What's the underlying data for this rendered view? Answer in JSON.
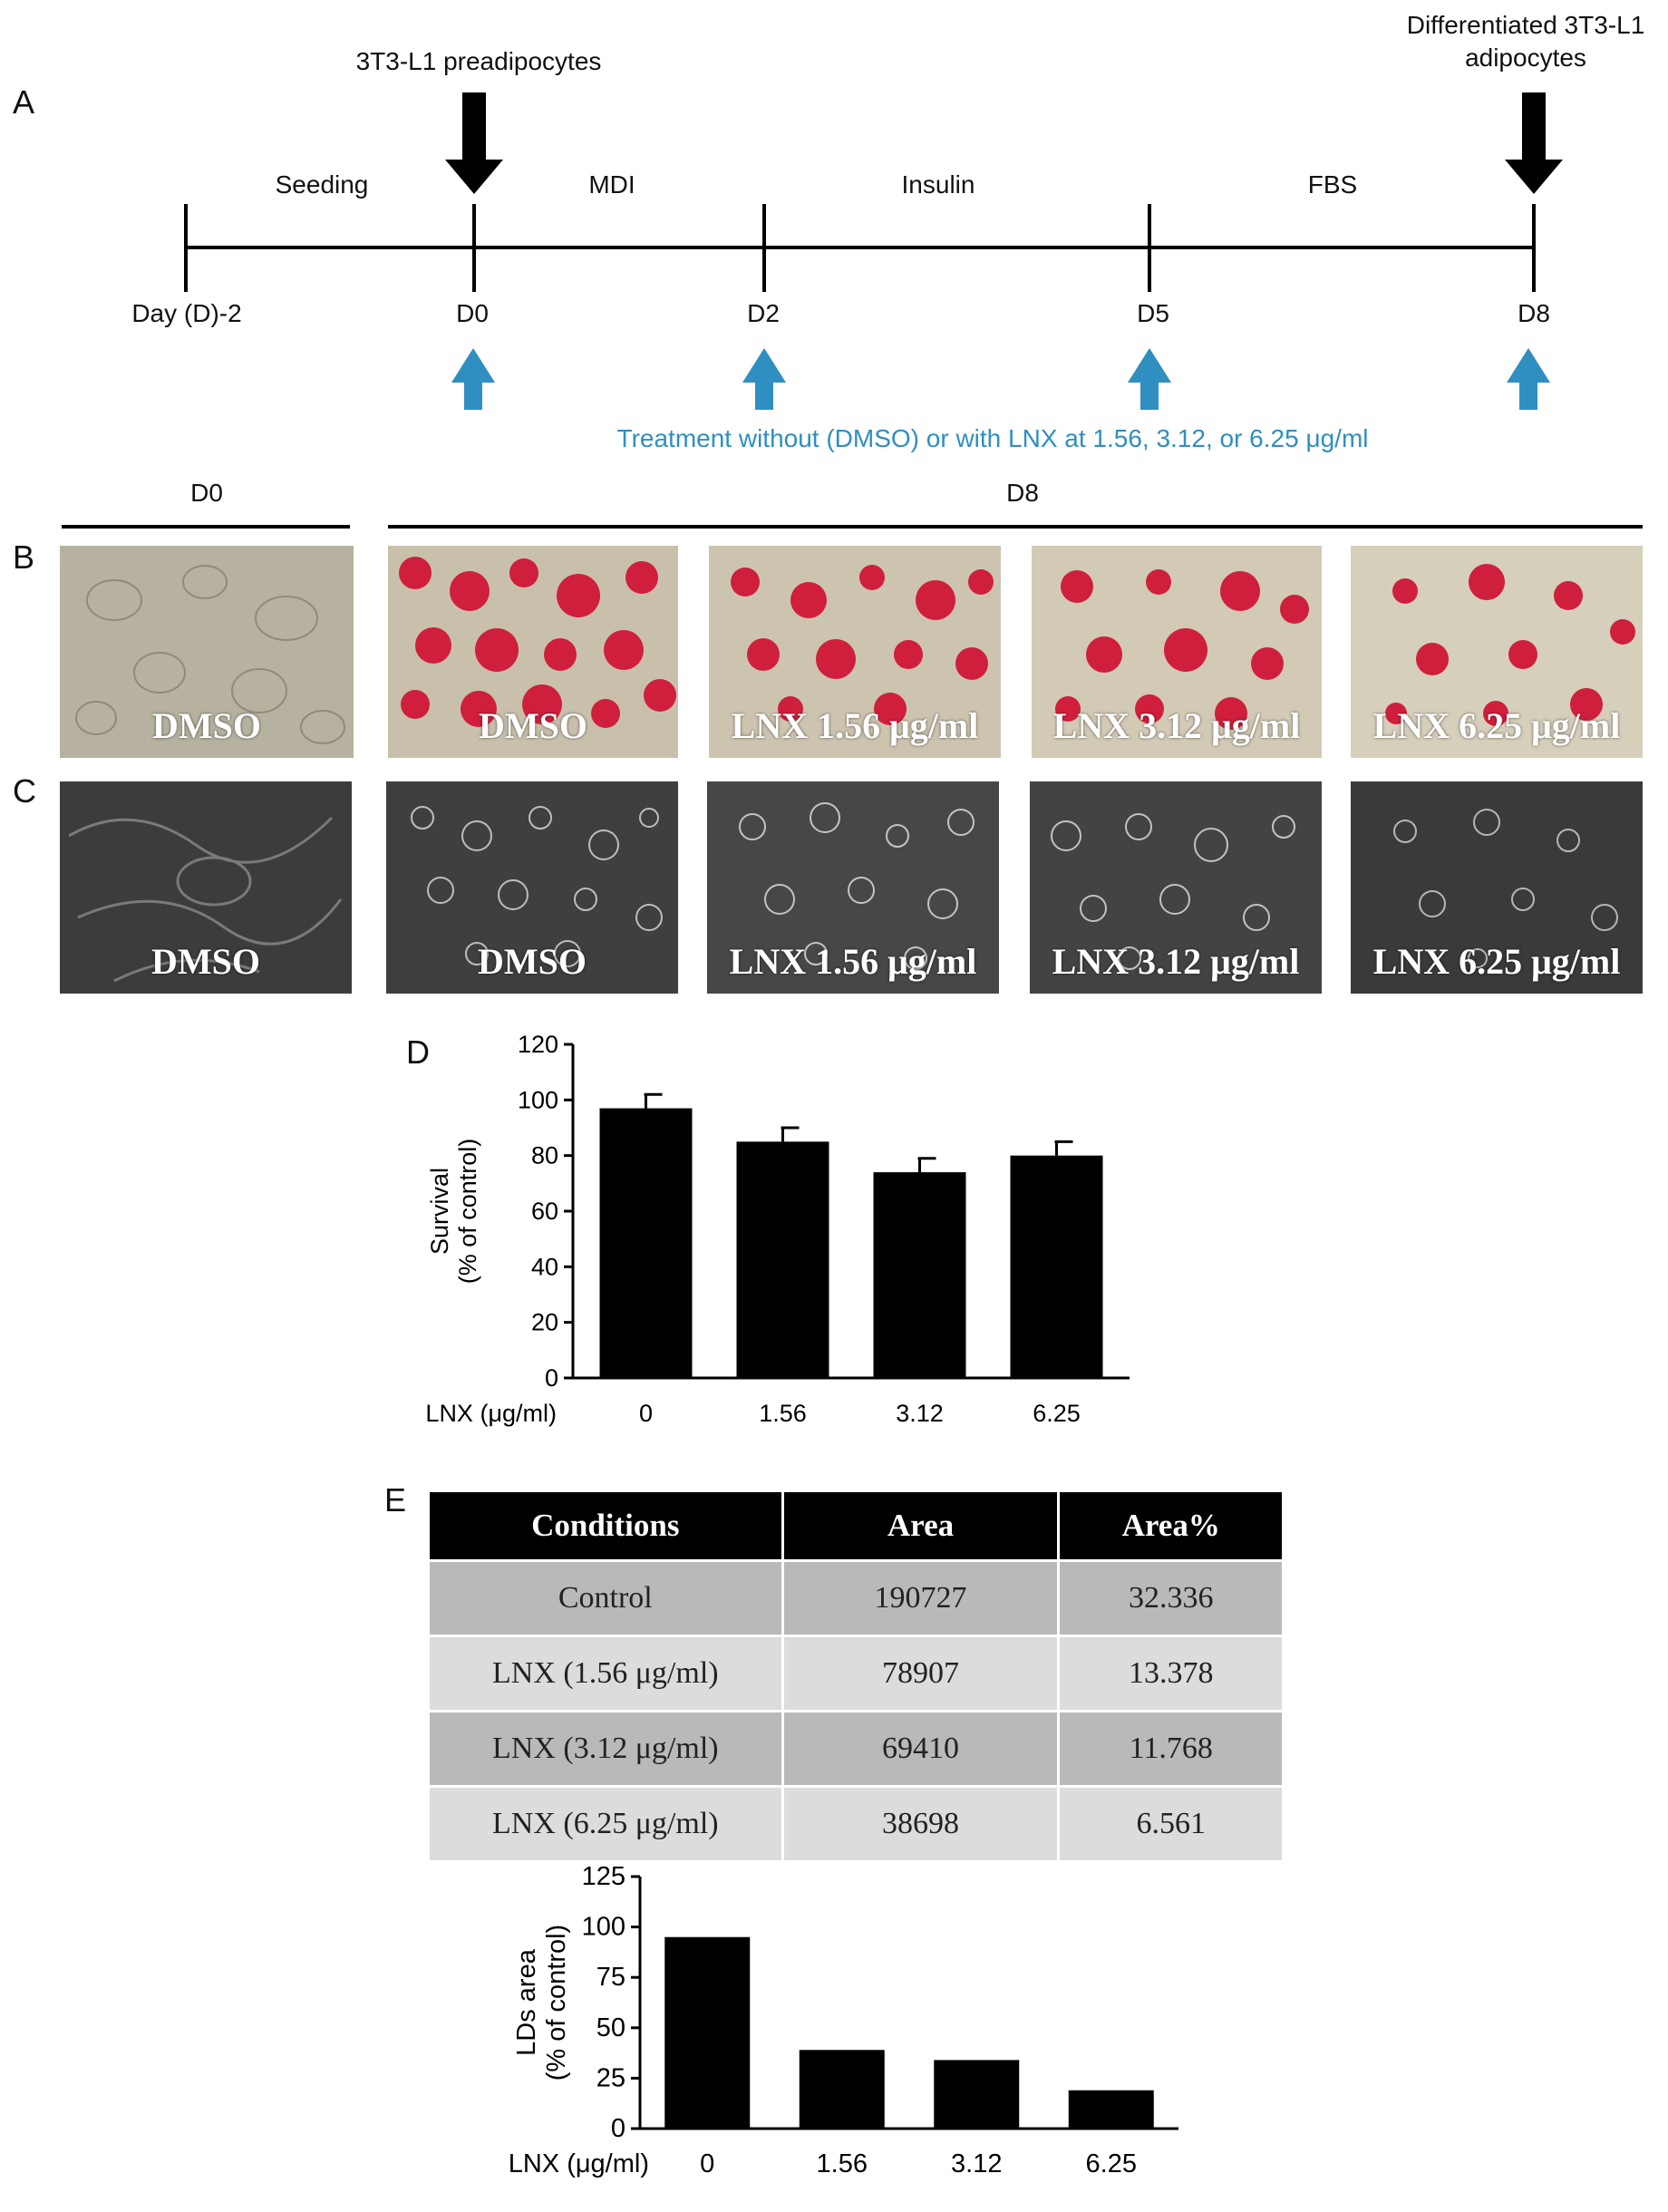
{
  "panels": {
    "a": "A",
    "b": "B",
    "c": "C",
    "d": "D",
    "e": "E"
  },
  "timeline": {
    "start_label": "3T3-L1 preadipocytes",
    "end_label_line1": "Differentiated 3T3-L1",
    "end_label_line2": "adipocytes",
    "phases": [
      "Seeding",
      "MDI",
      "Insulin",
      "FBS"
    ],
    "days": [
      "Day (D)-2",
      "D0",
      "D2",
      "D5",
      "D8"
    ],
    "treatment_note": "Treatment without (DMSO) or with LNX at 1.56, 3.12, or 6.25 μg/ml",
    "colors": {
      "treatment_arrow": "#2e8fc0",
      "black_arrow": "#000000"
    }
  },
  "image_groups": {
    "d0": "D0",
    "d8": "D8"
  },
  "oil_red_o_captions": [
    "DMSO",
    "DMSO",
    "LNX 1.56 μg/ml",
    "LNX 3.12 μg/ml",
    "LNX 6.25 μg/ml"
  ],
  "phase_contrast_captions": [
    "DMSO",
    "DMSO",
    "LNX 1.56 μg/ml",
    "LNX 3.12 μg/ml",
    "LNX 6.25 μg/ml"
  ],
  "table": {
    "headers": [
      "Conditions",
      "Area",
      "Area%"
    ],
    "rows": [
      [
        "Control",
        "190727",
        "32.336"
      ],
      [
        "LNX (1.56 μg/ml)",
        "78907",
        "13.378"
      ],
      [
        "LNX (3.12 μg/ml)",
        "69410",
        "11.768"
      ],
      [
        "LNX (6.25 μg/ml)",
        "38698",
        "6.561"
      ]
    ]
  },
  "chart_data": [
    {
      "type": "bar",
      "panel": "D",
      "categories": [
        "0",
        "1.56",
        "3.12",
        "6.25"
      ],
      "values": [
        97,
        85,
        74,
        80
      ],
      "errors": [
        5,
        5,
        5,
        5
      ],
      "xlabel": "LNX (μg/ml)",
      "ylabel_line1": "Survival",
      "ylabel_line2": "(% of control)",
      "ylim": [
        0,
        120
      ],
      "yticks": [
        0,
        20,
        40,
        60,
        80,
        100,
        120
      ],
      "grid": false,
      "bar_color": "#000000"
    },
    {
      "type": "bar",
      "panel": "E",
      "categories": [
        "0",
        "1.56",
        "3.12",
        "6.25"
      ],
      "values": [
        95,
        39,
        34,
        19
      ],
      "xlabel": "LNX (μg/ml)",
      "ylabel_line1": "LDs area",
      "ylabel_line2": "(% of control)",
      "ylim": [
        0,
        125
      ],
      "yticks": [
        0,
        25,
        50,
        75,
        100,
        125
      ],
      "grid": false,
      "bar_color": "#000000"
    }
  ]
}
